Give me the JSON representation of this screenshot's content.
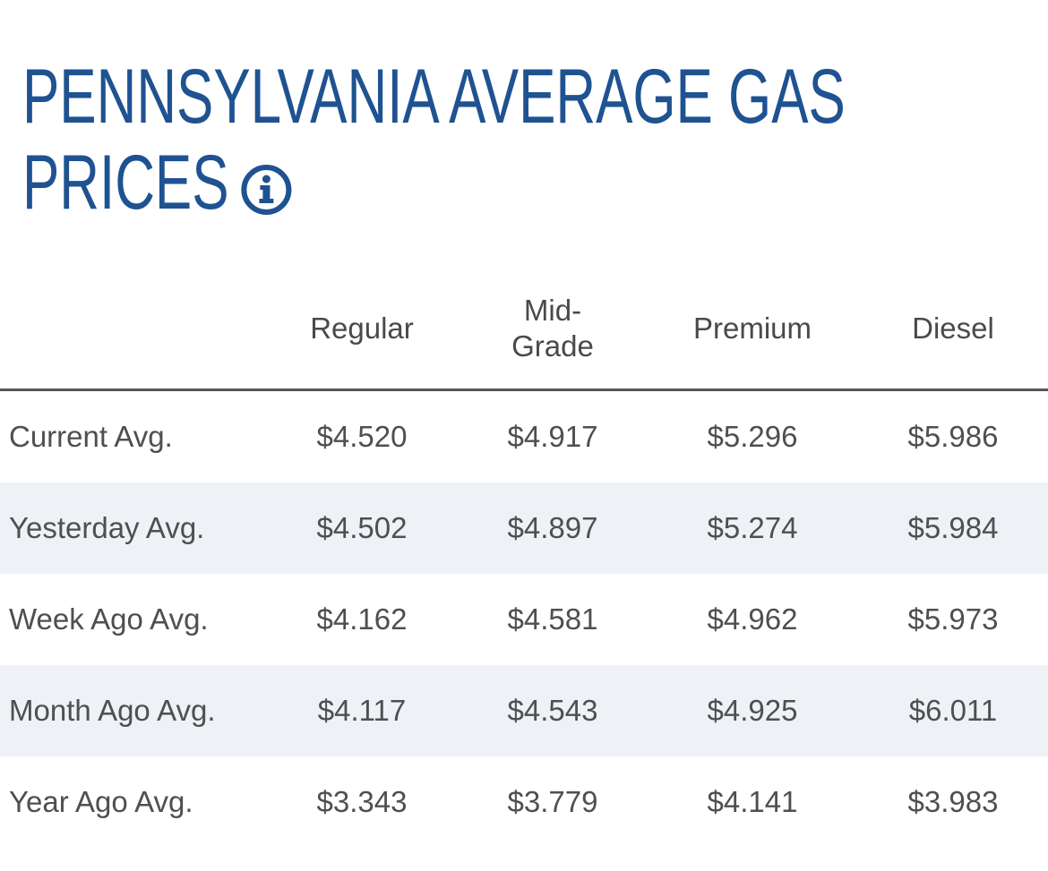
{
  "title_line1": "PENNSYLVANIA AVERAGE GAS",
  "title_line2": "PRICES",
  "colors": {
    "title": "#1f5291",
    "text": "#4f4f4f",
    "row_shade": "#eef1f6",
    "divider": "#555555"
  },
  "icons": {
    "info": "info-circle-icon"
  },
  "table": {
    "headers": [
      "Regular",
      "Mid-\nGrade",
      "Premium",
      "Diesel"
    ],
    "rows": [
      {
        "label": "Current Avg.",
        "values": [
          "$4.520",
          "$4.917",
          "$5.296",
          "$5.986"
        ]
      },
      {
        "label": "Yesterday Avg.",
        "values": [
          "$4.502",
          "$4.897",
          "$5.274",
          "$5.984"
        ]
      },
      {
        "label": "Week Ago Avg.",
        "values": [
          "$4.162",
          "$4.581",
          "$4.962",
          "$5.973"
        ]
      },
      {
        "label": "Month Ago Avg.",
        "values": [
          "$4.117",
          "$4.543",
          "$4.925",
          "$6.011"
        ]
      },
      {
        "label": "Year Ago Avg.",
        "values": [
          "$3.343",
          "$3.779",
          "$4.141",
          "$3.983"
        ]
      }
    ]
  }
}
